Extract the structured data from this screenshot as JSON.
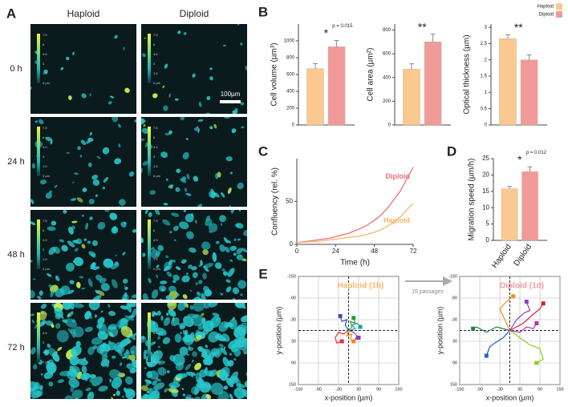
{
  "panel_labels": [
    "A",
    "B",
    "C",
    "D",
    "E"
  ],
  "panel_a": {
    "columns": [
      "Haploid",
      "Diploid"
    ],
    "rows": [
      "0 h",
      "24 h",
      "48 h",
      "72 h"
    ],
    "colorbar_ticks": [
      "7.5",
      "6",
      "4.5",
      "3",
      "1.5",
      "0 µm"
    ],
    "scale_bar": "100µm"
  },
  "legend": {
    "names": [
      "Haploid",
      "Diploid"
    ],
    "colors": [
      "#f9c98f",
      "#f19a9a"
    ]
  },
  "transition": "15 passages",
  "chart_data": [
    {
      "type": "bar",
      "ylabel": "Cell volume (µm³)",
      "values": [
        670,
        930
      ],
      "errors": [
        60,
        75
      ],
      "colors": [
        "#f9c98f",
        "#f19a9a"
      ],
      "ylim": [
        0,
        1200
      ],
      "yticks": [
        0,
        200,
        400,
        600,
        800,
        1000
      ],
      "annotations": [
        "*",
        "p = 0.015"
      ]
    },
    {
      "type": "bar",
      "ylabel": "Cell area (µm²)",
      "values": [
        470,
        700
      ],
      "errors": [
        45,
        65
      ],
      "colors": [
        "#f9c98f",
        "#f19a9a"
      ],
      "ylim": [
        0,
        850
      ],
      "yticks": [
        0,
        200,
        400,
        600,
        800
      ],
      "annotations": [
        "**"
      ]
    },
    {
      "type": "bar",
      "ylabel": "Optical thickness (µm)",
      "values": [
        2.65,
        2.0
      ],
      "errors": [
        0.12,
        0.15
      ],
      "colors": [
        "#f9c98f",
        "#f19a9a"
      ],
      "ylim": [
        0,
        3.1
      ],
      "yticks": [
        0,
        0.5,
        1,
        1.5,
        2,
        2.5,
        3
      ],
      "annotations": [
        "**"
      ]
    },
    {
      "type": "line",
      "xlabel": "Time (h)",
      "ylabel": "Confluency (rel. %)",
      "x": [
        0,
        4,
        8,
        12,
        16,
        20,
        24,
        28,
        32,
        36,
        40,
        44,
        48,
        52,
        56,
        60,
        64,
        68,
        72
      ],
      "series": [
        {
          "name": "Diploid",
          "color": "#ef6f7a",
          "values": [
            2,
            3,
            4,
            5,
            6,
            7,
            9,
            11,
            13,
            16,
            19,
            23,
            28,
            34,
            42,
            52,
            62,
            76,
            90
          ]
        },
        {
          "name": "Haploid",
          "color": "#f7b66b",
          "values": [
            2,
            2.5,
            3,
            3.5,
            4,
            5,
            6,
            7,
            8,
            9,
            10,
            12,
            14,
            17,
            21,
            26,
            32,
            40,
            48
          ]
        }
      ],
      "xlim": [
        0,
        72
      ],
      "xticks": [
        0,
        24,
        48,
        72
      ],
      "ylim": [
        0,
        100
      ],
      "yticks": [
        0,
        50
      ]
    },
    {
      "type": "bar",
      "ylabel": "Migration speed (µm/h)",
      "categories": [
        "Haploid",
        "Diploid"
      ],
      "values": [
        15.8,
        21
      ],
      "errors": [
        0.7,
        1.5
      ],
      "colors": [
        "#f9c98f",
        "#f19a9a"
      ],
      "ylim": [
        0,
        25
      ],
      "yticks": [
        0,
        5,
        10,
        15,
        20,
        25
      ],
      "annotations": [
        "*",
        "p = 0.012"
      ]
    },
    {
      "type": "track",
      "title": "Haploid (1h)",
      "title_color": "#f7b66b",
      "xlabel": "x-position (µm)",
      "ylabel": "y-position (µm)",
      "xlim": [
        -150,
        150
      ],
      "ylim": [
        -150,
        150
      ],
      "y_inverted": true,
      "xticks": [
        -150,
        -90,
        -30,
        30,
        90,
        150
      ],
      "yticks": [
        -150,
        -90,
        -30,
        30,
        90,
        150
      ],
      "series": [
        {
          "color": "#e0303a",
          "x": [
            0,
            -15,
            -30,
            -40,
            -35,
            -20
          ],
          "y": [
            0,
            10,
            5,
            20,
            35,
            30
          ]
        },
        {
          "color": "#2a9d3a",
          "x": [
            0,
            10,
            5,
            20,
            15
          ],
          "y": [
            0,
            -10,
            -25,
            -20,
            -35
          ]
        },
        {
          "color": "#3050c0",
          "x": [
            0,
            -10,
            -5,
            -20,
            -25
          ],
          "y": [
            0,
            -15,
            -30,
            -25,
            -40
          ]
        },
        {
          "color": "#8a3fb0",
          "x": [
            0,
            15,
            25,
            20,
            30
          ],
          "y": [
            0,
            5,
            15,
            25,
            20
          ]
        },
        {
          "color": "#f08a20",
          "x": [
            0,
            -5,
            10,
            5,
            15
          ],
          "y": [
            0,
            15,
            10,
            25,
            30
          ]
        },
        {
          "color": "#20a0a0",
          "x": [
            0,
            20,
            10,
            25,
            35
          ],
          "y": [
            0,
            -5,
            -15,
            -20,
            -10
          ]
        }
      ]
    },
    {
      "type": "track",
      "title": "Diploid (1d)",
      "title_color": "#f19a9a",
      "xlabel": "x-position (µm)",
      "ylabel": "y-position (µm)",
      "xlim": [
        -150,
        150
      ],
      "ylim": [
        -150,
        150
      ],
      "y_inverted": true,
      "xticks": [
        -150,
        -90,
        -30,
        30,
        90,
        150
      ],
      "yticks": [
        -150,
        -90,
        -30,
        30,
        90,
        150
      ],
      "series": [
        {
          "color": "#8ad020",
          "x": [
            0,
            30,
            60,
            90,
            100,
            80
          ],
          "y": [
            0,
            20,
            40,
            50,
            80,
            90
          ]
        },
        {
          "color": "#208040",
          "x": [
            0,
            -40,
            -70,
            -100,
            -110
          ],
          "y": [
            0,
            -10,
            5,
            -10,
            -5
          ]
        },
        {
          "color": "#d02040",
          "x": [
            0,
            40,
            70,
            90,
            100
          ],
          "y": [
            0,
            -20,
            -45,
            -60,
            -75
          ]
        },
        {
          "color": "#2060d0",
          "x": [
            0,
            -20,
            -45,
            -60,
            -70
          ],
          "y": [
            0,
            20,
            35,
            45,
            70
          ]
        },
        {
          "color": "#9040c0",
          "x": [
            0,
            20,
            45,
            60,
            50
          ],
          "y": [
            0,
            -30,
            -50,
            -55,
            -80
          ]
        },
        {
          "color": "#f09020",
          "x": [
            0,
            -15,
            -30,
            -10,
            10
          ],
          "y": [
            0,
            -30,
            -60,
            -80,
            -95
          ]
        },
        {
          "color": "#c030a0",
          "x": [
            0,
            30,
            50,
            70,
            80
          ],
          "y": [
            0,
            5,
            -10,
            -5,
            -20
          ]
        }
      ]
    }
  ]
}
